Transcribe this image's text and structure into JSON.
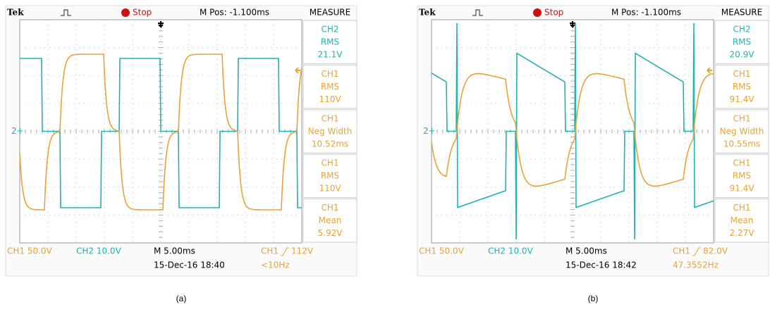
{
  "panels": [
    {
      "header": {
        "brand": "Tek",
        "status": "Stop",
        "mpos": "M Pos: -1.100ms",
        "measure": "MEASURE"
      },
      "ch2_marker": "2+",
      "measurements": [
        {
          "channel": "CH2",
          "type": "RMS",
          "value": "21.1V"
        },
        {
          "channel": "CH1",
          "type": "RMS",
          "value": "110V"
        },
        {
          "channel": "CH1",
          "type": "Neg Width",
          "value": "10.52ms"
        },
        {
          "channel": "CH1",
          "type": "RMS",
          "value": "110V"
        },
        {
          "channel": "CH1",
          "type": "Mean",
          "value": "5.92V"
        }
      ],
      "footer": {
        "ch1": "CH1 50.0V",
        "ch2": "CH2 10.0V",
        "timebase": "M 5.00ms",
        "datetime": "15-Dec-16 18:40",
        "trigger_source": "CH1",
        "trigger_level": "112V",
        "frequency": "<10Hz"
      },
      "caption": "(a)"
    },
    {
      "header": {
        "brand": "Tek",
        "status": "Stop",
        "mpos": "M Pos: -1.100ms",
        "measure": "MEASURE"
      },
      "ch2_marker": "2+",
      "measurements": [
        {
          "channel": "CH2",
          "type": "RMS",
          "value": "20.9V"
        },
        {
          "channel": "CH1",
          "type": "RMS",
          "value": "91.4V"
        },
        {
          "channel": "CH1",
          "type": "Neg Width",
          "value": "10.55ms"
        },
        {
          "channel": "CH1",
          "type": "RMS",
          "value": "91.4V"
        },
        {
          "channel": "CH1",
          "type": "Mean",
          "value": "2.27V"
        }
      ],
      "footer": {
        "ch1": "CH1 50.0V",
        "ch2": "CH2 10.0V",
        "timebase": "M 5.00ms",
        "datetime": "15-Dec-16 18:42",
        "trigger_source": "CH1",
        "trigger_level": "82.0V",
        "frequency": "47.3552Hz"
      },
      "caption": "(b)"
    }
  ]
}
